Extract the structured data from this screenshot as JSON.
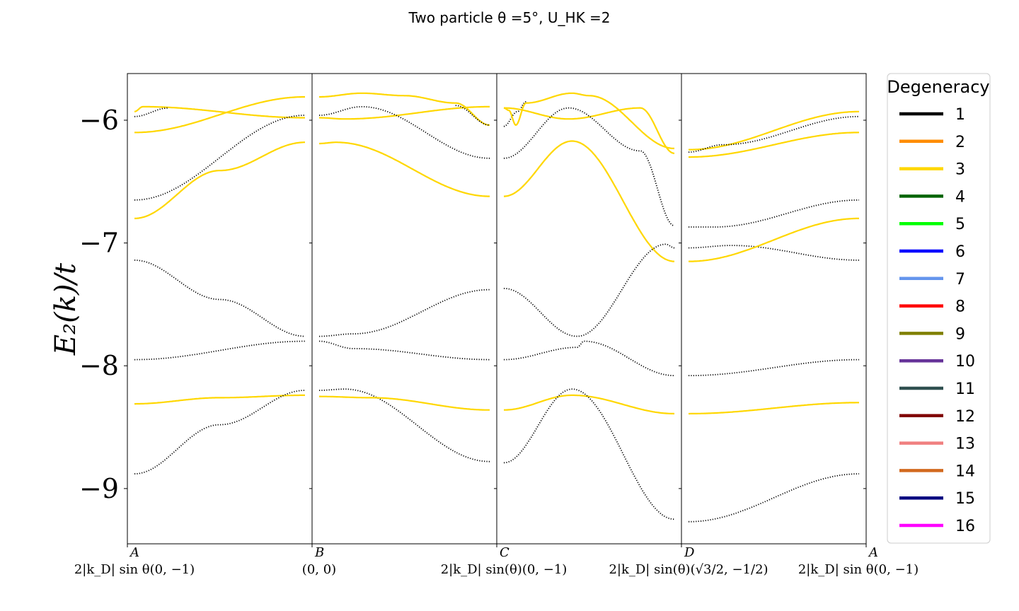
{
  "chart_data": {
    "type": "line",
    "title": "Two particle θ =5°, U_HK =2",
    "ylabel": "E₂(k)/t",
    "xlabel": "",
    "ylim": [
      -9.45,
      -5.62
    ],
    "yticks": [
      -6,
      -7,
      -8,
      -9
    ],
    "ytick_labels": [
      "−6",
      "−7",
      "−8",
      "−9"
    ],
    "grid": false,
    "legend_placement": "outside-right",
    "xticks": [
      {
        "letter": "A",
        "sub": "2|k_D| sin θ(0, −1)"
      },
      {
        "letter": "B",
        "sub": "(0, 0)"
      },
      {
        "letter": "C",
        "sub": "2|k_D| sin(θ)(0, −1)"
      },
      {
        "letter": "D",
        "sub": "2|k_D| sin(θ)(√3/2, −1/2)"
      },
      {
        "letter": "A",
        "sub": "2|k_D| sin θ(0, −1)"
      }
    ],
    "legend": {
      "title": "Degeneracy",
      "entries": [
        {
          "label": "1",
          "color": "#000000"
        },
        {
          "label": "2",
          "color": "#ff8c00"
        },
        {
          "label": "3",
          "color": "#ffd700"
        },
        {
          "label": "4",
          "color": "#006400"
        },
        {
          "label": "5",
          "color": "#00ff00"
        },
        {
          "label": "6",
          "color": "#0000ff"
        },
        {
          "label": "7",
          "color": "#6495ed"
        },
        {
          "label": "8",
          "color": "#ff0000"
        },
        {
          "label": "9",
          "color": "#808000"
        },
        {
          "label": "10",
          "color": "#663399"
        },
        {
          "label": "11",
          "color": "#2f4f4f"
        },
        {
          "label": "12",
          "color": "#800000"
        },
        {
          "label": "13",
          "color": "#f08080"
        },
        {
          "label": "14",
          "color": "#d2691e"
        },
        {
          "label": "15",
          "color": "#000080"
        },
        {
          "label": "16",
          "color": "#ff00ff"
        }
      ]
    },
    "panels": [
      {
        "segment": "A-B",
        "series": [
          {
            "degeneracy": 3,
            "color": "#ffd700",
            "x": [
              0,
              0.05,
              1
            ],
            "y": [
              -5.93,
              -5.89,
              -5.98
            ]
          },
          {
            "degeneracy": 1,
            "color": "#000000",
            "x": [
              0,
              0.2
            ],
            "y": [
              -5.97,
              -5.9
            ]
          },
          {
            "degeneracy": 3,
            "color": "#ffd700",
            "x": [
              0,
              1
            ],
            "y": [
              -6.1,
              -5.81
            ]
          },
          {
            "degeneracy": 1,
            "color": "#000000",
            "x": [
              0,
              1
            ],
            "y": [
              -6.65,
              -5.96
            ]
          },
          {
            "degeneracy": 3,
            "color": "#ffd700",
            "x": [
              0,
              0.5,
              1
            ],
            "y": [
              -6.8,
              -6.41,
              -6.18
            ]
          },
          {
            "degeneracy": 1,
            "color": "#000000",
            "x": [
              0,
              0.5,
              1
            ],
            "y": [
              -7.14,
              -7.46,
              -7.76
            ]
          },
          {
            "degeneracy": 1,
            "color": "#000000",
            "x": [
              0,
              1
            ],
            "y": [
              -7.95,
              -7.8
            ]
          },
          {
            "degeneracy": 3,
            "color": "#ffd700",
            "x": [
              0,
              0.5,
              1
            ],
            "y": [
              -8.31,
              -8.26,
              -8.24
            ]
          },
          {
            "degeneracy": 1,
            "color": "#000000",
            "x": [
              0,
              0.5,
              1
            ],
            "y": [
              -8.88,
              -8.48,
              -8.2
            ]
          }
        ]
      },
      {
        "segment": "B-C",
        "series": [
          {
            "degeneracy": 3,
            "color": "#ffd700",
            "x": [
              0,
              0.25,
              0.5,
              0.8,
              1
            ],
            "y": [
              -5.81,
              -5.78,
              -5.8,
              -5.86,
              -6.04
            ]
          },
          {
            "degeneracy": 3,
            "color": "#ffd700",
            "x": [
              0,
              0.15,
              1
            ],
            "y": [
              -5.98,
              -5.99,
              -5.89
            ]
          },
          {
            "degeneracy": 1,
            "color": "#000000",
            "x": [
              0,
              0.25,
              1
            ],
            "y": [
              -5.96,
              -5.89,
              -6.31
            ]
          },
          {
            "degeneracy": 1,
            "color": "#000000",
            "x": [
              0.8,
              1
            ],
            "y": [
              -5.88,
              -6.04
            ]
          },
          {
            "degeneracy": 3,
            "color": "#ffd700",
            "x": [
              0,
              0.1,
              1
            ],
            "y": [
              -6.19,
              -6.18,
              -6.62
            ]
          },
          {
            "degeneracy": 1,
            "color": "#000000",
            "x": [
              0,
              0.2,
              1
            ],
            "y": [
              -7.76,
              -7.74,
              -7.38
            ]
          },
          {
            "degeneracy": 1,
            "color": "#000000",
            "x": [
              0,
              0.2,
              1
            ],
            "y": [
              -7.8,
              -7.86,
              -7.95
            ]
          },
          {
            "degeneracy": 1,
            "color": "#000000",
            "x": [
              0,
              0.15,
              1
            ],
            "y": [
              -8.2,
              -8.19,
              -8.78
            ]
          },
          {
            "degeneracy": 3,
            "color": "#ffd700",
            "x": [
              0,
              0.3,
              1
            ],
            "y": [
              -8.25,
              -8.26,
              -8.36
            ]
          }
        ]
      },
      {
        "segment": "C-D",
        "series": [
          {
            "degeneracy": 1,
            "color": "#000000",
            "x": [
              0,
              0.08,
              0.13
            ],
            "y": [
              -6.05,
              -5.93,
              -5.85
            ]
          },
          {
            "degeneracy": 3,
            "color": "#ffd700",
            "x": [
              0,
              0.03,
              0.07,
              0.13,
              0.4,
              0.5,
              1
            ],
            "y": [
              -5.9,
              -5.92,
              -6.04,
              -5.86,
              -5.78,
              -5.8,
              -6.23
            ]
          },
          {
            "degeneracy": 3,
            "color": "#ffd700",
            "x": [
              0,
              0.38,
              0.8,
              1
            ],
            "y": [
              -5.9,
              -5.99,
              -5.9,
              -6.27
            ]
          },
          {
            "degeneracy": 1,
            "color": "#000000",
            "x": [
              0,
              0.38,
              0.8,
              1
            ],
            "y": [
              -6.31,
              -5.9,
              -6.25,
              -6.86
            ]
          },
          {
            "degeneracy": 3,
            "color": "#ffd700",
            "x": [
              0,
              0.4,
              1
            ],
            "y": [
              -6.62,
              -6.17,
              -7.15
            ]
          },
          {
            "degeneracy": 1,
            "color": "#000000",
            "x": [
              0,
              0.43,
              0.95,
              1
            ],
            "y": [
              -7.37,
              -7.76,
              -7.01,
              -7.04
            ]
          },
          {
            "degeneracy": 1,
            "color": "#000000",
            "x": [
              0,
              0.43,
              0.47,
              1
            ],
            "y": [
              -7.95,
              -7.85,
              -7.8,
              -8.08
            ]
          },
          {
            "degeneracy": 3,
            "color": "#ffd700",
            "x": [
              0,
              0.4,
              1
            ],
            "y": [
              -8.36,
              -8.24,
              -8.39
            ]
          },
          {
            "degeneracy": 1,
            "color": "#000000",
            "x": [
              0,
              0.4,
              1
            ],
            "y": [
              -8.79,
              -8.19,
              -9.25
            ]
          }
        ]
      },
      {
        "segment": "D-A",
        "series": [
          {
            "degeneracy": 3,
            "color": "#ffd700",
            "x": [
              0,
              1
            ],
            "y": [
              -6.24,
              -5.93
            ]
          },
          {
            "degeneracy": 1,
            "color": "#000000",
            "x": [
              0,
              0.2,
              1
            ],
            "y": [
              -6.26,
              -6.2,
              -5.97
            ]
          },
          {
            "degeneracy": 3,
            "color": "#ffd700",
            "x": [
              0,
              1
            ],
            "y": [
              -6.3,
              -6.1
            ]
          },
          {
            "degeneracy": 1,
            "color": "#000000",
            "x": [
              0,
              0.15,
              1
            ],
            "y": [
              -6.87,
              -6.87,
              -6.65
            ]
          },
          {
            "degeneracy": 1,
            "color": "#000000",
            "x": [
              0,
              0.25,
              1
            ],
            "y": [
              -7.04,
              -7.02,
              -7.14
            ]
          },
          {
            "degeneracy": 3,
            "color": "#ffd700",
            "x": [
              0,
              1
            ],
            "y": [
              -7.15,
              -6.8
            ]
          },
          {
            "degeneracy": 1,
            "color": "#000000",
            "x": [
              0,
              1
            ],
            "y": [
              -8.08,
              -7.95
            ]
          },
          {
            "degeneracy": 3,
            "color": "#ffd700",
            "x": [
              0,
              1
            ],
            "y": [
              -8.39,
              -8.3
            ]
          },
          {
            "degeneracy": 1,
            "color": "#000000",
            "x": [
              0,
              1
            ],
            "y": [
              -9.27,
              -8.88
            ]
          }
        ]
      }
    ]
  }
}
